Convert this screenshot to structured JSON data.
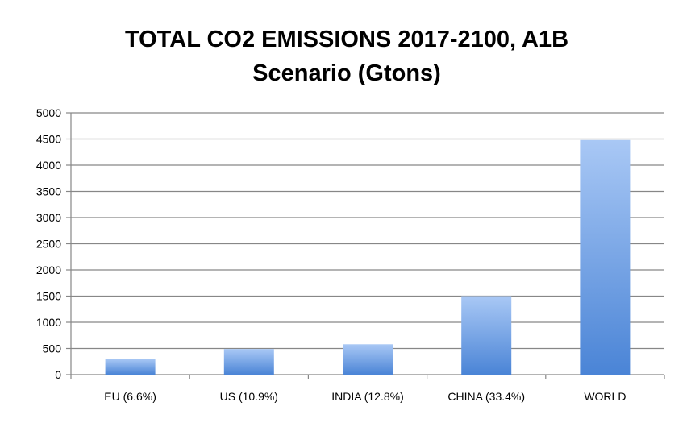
{
  "chart_data": {
    "type": "bar",
    "title": [
      "TOTAL CO2 EMISSIONS 2017-2100, A1B",
      "Scenario (Gtons)"
    ],
    "categories": [
      "EU (6.6%)",
      "US (10.9%)",
      "INDIA (12.8%)",
      "CHINA (33.4%)",
      "WORLD"
    ],
    "values": [
      300,
      490,
      580,
      1500,
      4480
    ],
    "ylim": [
      0,
      5000
    ],
    "yticks": [
      0,
      500,
      1000,
      1500,
      2000,
      2500,
      3000,
      3500,
      4000,
      4500,
      5000
    ],
    "grid": true,
    "legend": "none",
    "colors": {
      "bar_top": "#a9c8f5",
      "bar_bottom": "#4a84d6",
      "grid": "#878787",
      "axis": "#878787"
    }
  }
}
